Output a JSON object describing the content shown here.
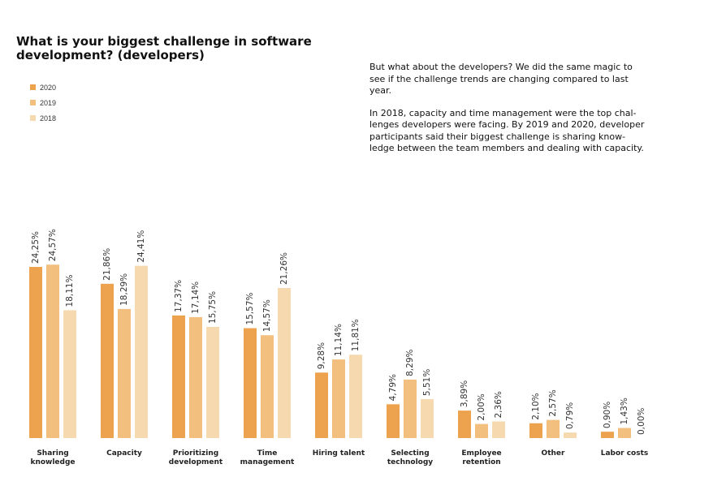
{
  "title": "What is your biggest challenge in software development? (developers)",
  "description": [
    "But what about the developers? We did the same magic to\nsee if the challenge trends are changing compared to last\nyear.",
    "In 2018, capacity and time management were the top chal-\nlenges developers were facing. By 2019 and 2020, developer\nparticipants said their biggest challenge is sharing know-\nledge between the team members and dealing with capacity."
  ],
  "chart_data": {
    "type": "bar",
    "categories": [
      "Sharing\nknowledge",
      "Capacity",
      "Prioritizing\ndevelopment",
      "Time\nmanagement",
      "Hiring talent",
      "Selecting\ntechnology",
      "Employee\nretention",
      "Other",
      "Labor costs"
    ],
    "series": [
      {
        "name": "2020",
        "color": "#eda24e",
        "values": [
          24.25,
          21.86,
          17.37,
          15.57,
          9.28,
          4.79,
          3.89,
          2.1,
          0.9
        ],
        "labels": [
          "24,25%",
          "21,86%",
          "17,37%",
          "15,57%",
          "9,28%",
          "4,79%",
          "3,89%",
          "2,10%",
          "0,90%"
        ]
      },
      {
        "name": "2019",
        "color": "#f3bf7f",
        "values": [
          24.57,
          18.29,
          17.14,
          14.57,
          11.14,
          8.29,
          2.0,
          2.57,
          1.43
        ],
        "labels": [
          "24,57%",
          "18,29%",
          "17,14%",
          "14,57%",
          "11,14%",
          "8,29%",
          "2,00%",
          "2,57%",
          "1,43%"
        ]
      },
      {
        "name": "2018",
        "color": "#f7d9b0",
        "values": [
          18.11,
          24.41,
          15.75,
          21.26,
          11.81,
          5.51,
          2.36,
          0.79,
          0.0
        ],
        "labels": [
          "18,11%",
          "24,41%",
          "15,75%",
          "21,26%",
          "11,81%",
          "5,51%",
          "2,36%",
          "0,79%",
          "0,00%"
        ]
      }
    ],
    "legend_position": "top-left",
    "grid": false,
    "ylim": [
      0,
      25
    ]
  }
}
